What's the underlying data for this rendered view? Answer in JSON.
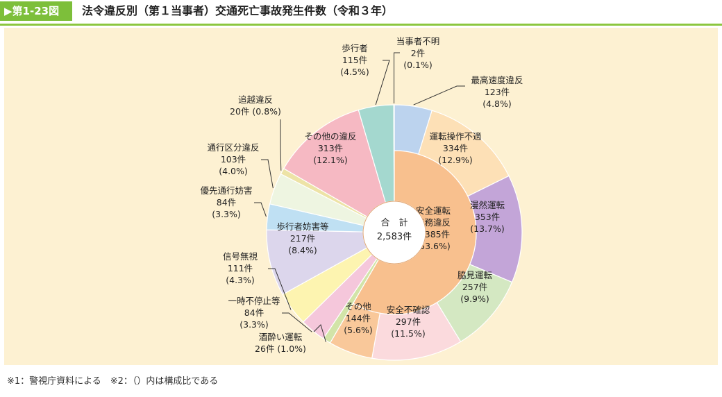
{
  "figure_no": "▶第1-23図",
  "title": "法令違反別（第１当事者）交通死亡事故発生件数（令和３年）",
  "note": "※1：警視庁資料による　※2：（）内は構成比である",
  "chart_data": {
    "type": "pie",
    "variant": "nested-donut",
    "center": {
      "label": "合　計",
      "total": "2,583件"
    },
    "outer": [
      {
        "name": "最高速度違反",
        "count": "123件",
        "pct": "(4.8%)",
        "value": 123,
        "color": "#bcd3ee"
      },
      {
        "name": "運転操作不適",
        "count": "334件",
        "pct": "(12.9%)",
        "value": 334,
        "color": "#fde0b6"
      },
      {
        "name": "漫然運転",
        "count": "353件",
        "pct": "(13.7%)",
        "value": 353,
        "color": "#c3a5d8"
      },
      {
        "name": "脇見運転",
        "count": "257件",
        "pct": "(9.9%)",
        "value": 257,
        "color": "#d4e8c2"
      },
      {
        "name": "安全不確認",
        "count": "297件",
        "pct": "(11.5%)",
        "value": 297,
        "color": "#fbdadd"
      },
      {
        "name": "その他",
        "count": "144件",
        "pct": "(5.6%)",
        "value": 144,
        "color": "#f9c89a"
      },
      {
        "name": "酒酔い運転",
        "count": "26件",
        "pct": "(1.0%)",
        "value": 26,
        "color": "#d2e4a8"
      },
      {
        "name": "一時不停止等",
        "count": "84件",
        "pct": "(3.3%)",
        "value": 84,
        "color": "#f5c7db"
      },
      {
        "name": "信号無視",
        "count": "111件",
        "pct": "(4.3%)",
        "value": 111,
        "color": "#fdf4b0"
      },
      {
        "name": "歩行者妨害等",
        "count": "217件",
        "pct": "(8.4%)",
        "value": 217,
        "color": "#dcd6ec"
      },
      {
        "name": "優先通行妨害",
        "count": "84件",
        "pct": "(3.3%)",
        "value": 84,
        "color": "#bfe0f3"
      },
      {
        "name": "通行区分違反",
        "count": "103件",
        "pct": "(4.0%)",
        "value": 103,
        "color": "#eef5e1"
      },
      {
        "name": "追越違反",
        "count": "20件",
        "pct": "(0.8%)",
        "value": 20,
        "color": "#ede3a6"
      },
      {
        "name": "その他の違反",
        "count": "313件",
        "pct": "(12.1%)",
        "value": 313,
        "color": "#f6b9c3"
      },
      {
        "name": "歩行者",
        "count": "115件",
        "pct": "(4.5%)",
        "value": 115,
        "color": "#a4d8cf"
      },
      {
        "name": "当事者不明",
        "count": "2件",
        "pct": "(0.1%)",
        "value": 2,
        "color": "#f7f7f7"
      }
    ],
    "inner": {
      "name1": "安全運転",
      "name2": "義務違反",
      "count": "1,385件",
      "pct": "(53.6%)",
      "value": 1385,
      "color": "#f8c08e"
    }
  }
}
